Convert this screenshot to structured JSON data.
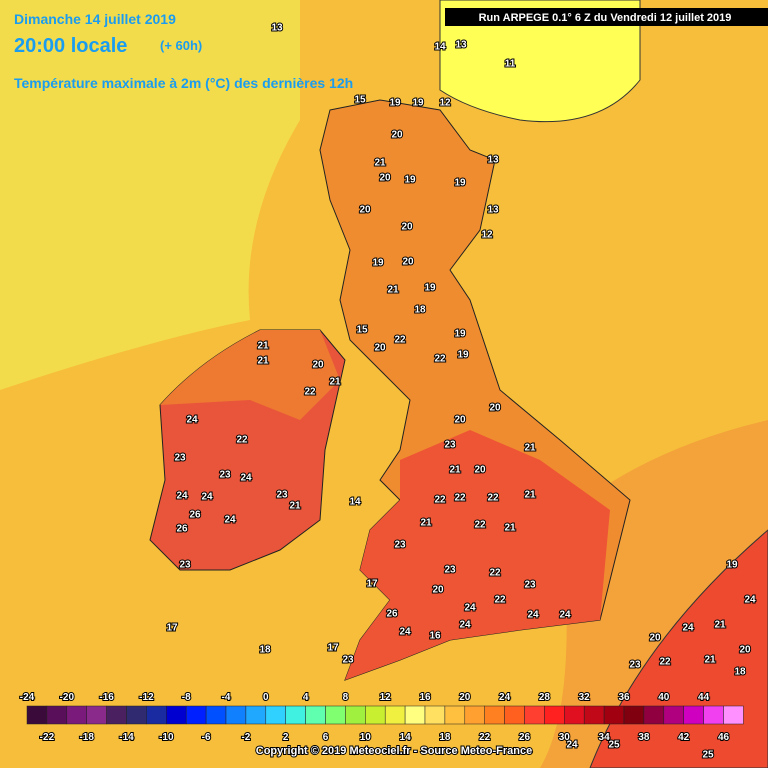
{
  "header": {
    "date": "Dimanche 14 juillet 2019",
    "time": "20:00 locale",
    "lead": "(+ 60h)",
    "subtitle": "Température maximale à 2m (°C) des dernières 12h",
    "run": "Run ARPEGE 0.1° 6 Z du Vendredi 12 juillet 2019"
  },
  "map": {
    "labels": [
      13,
      14,
      13,
      11,
      12,
      15,
      19,
      19,
      20,
      21,
      20,
      19,
      19,
      13,
      13,
      12,
      20,
      20,
      19,
      20,
      19,
      21,
      18,
      15,
      20,
      22,
      19,
      19,
      22,
      21,
      21,
      20,
      21,
      22,
      24,
      22,
      23,
      23,
      24,
      24,
      24,
      23,
      21,
      26,
      26,
      24,
      23,
      14,
      17,
      17,
      18,
      17,
      23,
      26,
      24,
      16,
      22,
      22,
      22,
      21,
      21,
      21,
      22,
      23,
      22,
      23,
      24,
      24,
      22,
      24,
      19,
      24,
      21,
      20,
      24,
      23,
      20,
      18,
      21,
      22,
      24,
      25,
      25,
      21,
      20,
      23,
      20,
      20,
      21,
      23,
      20,
      24
    ]
  },
  "scale": {
    "top_labels": [
      -24,
      -20,
      -16,
      -12,
      -8,
      -4,
      0,
      4,
      8,
      12,
      16,
      20,
      24,
      28,
      32,
      36,
      40,
      44
    ],
    "bottom_labels": [
      -22,
      -18,
      -14,
      -10,
      -6,
      -2,
      2,
      6,
      10,
      14,
      18,
      22,
      26,
      30,
      34,
      38,
      42,
      46
    ]
  },
  "footer": "Copyright © 2019 Meteociel.fr - Source Meteo-France"
}
